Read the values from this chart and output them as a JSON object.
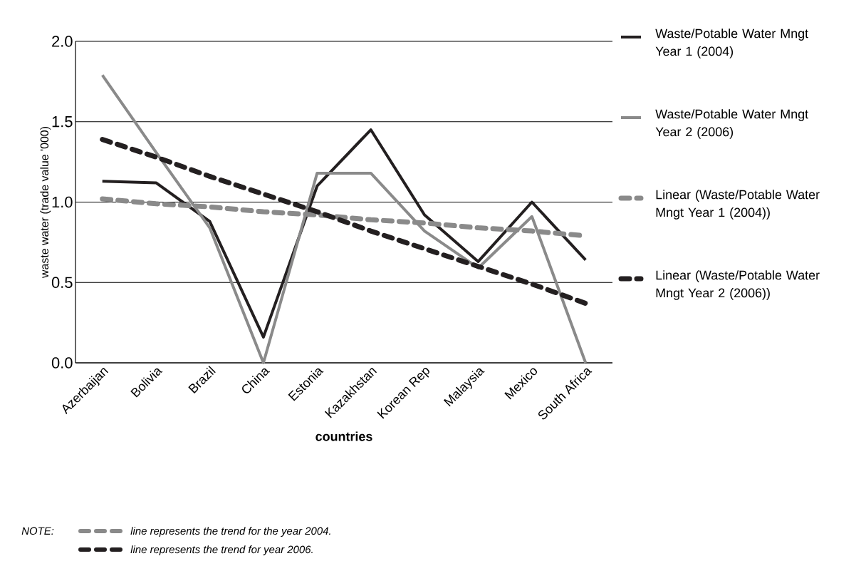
{
  "chart_data": {
    "type": "line",
    "xlabel": "countries",
    "ylabel": "waste water (trade value '000)",
    "categories": [
      "Azerbaijan",
      "Bolivia",
      "Brazil",
      "China",
      "Estonia",
      "Kazakhstan",
      "Korean Rep",
      "Malaysia",
      "Mexico",
      "South Africa"
    ],
    "series": [
      {
        "name": "Waste/Potable Water Mngt Year 1 (2004)",
        "color": "#231f20",
        "line_style": "solid",
        "values": [
          1.13,
          1.12,
          0.88,
          0.16,
          1.1,
          1.45,
          0.92,
          0.63,
          1.0,
          0.64
        ]
      },
      {
        "name": "Waste/Potable Water Mngt Year 2 (2006)",
        "color": "#8a8a8a",
        "line_style": "solid",
        "values": [
          1.79,
          1.31,
          0.84,
          0.0,
          1.18,
          1.18,
          0.82,
          0.59,
          0.91,
          0.0
        ]
      },
      {
        "name": "Linear (Waste/Potable Water Mngt Year 1 (2004))",
        "color": "#8a8a8a",
        "line_style": "dashed",
        "values": [
          1.02,
          0.99,
          0.97,
          0.94,
          0.92,
          0.89,
          0.87,
          0.84,
          0.82,
          0.79
        ]
      },
      {
        "name": "Linear (Waste/Potable Water Mngt Year 2 (2006))",
        "color": "#231f20",
        "line_style": "dashed",
        "values": [
          1.39,
          1.28,
          1.16,
          1.05,
          0.94,
          0.82,
          0.71,
          0.6,
          0.49,
          0.37
        ]
      }
    ],
    "ylim": [
      0,
      2
    ],
    "yticks": [
      {
        "value": 0,
        "label": "0.0"
      },
      0.5,
      {
        "value": 1,
        "label": "1.0"
      },
      1.5,
      {
        "value": 2,
        "label": "2.0"
      }
    ],
    "grid": "y",
    "legend": "right",
    "marker": "none",
    "annotations": [
      "NOTE:",
      "line represents the trend  for the year 2004.",
      "line represents the trend for year 2006."
    ]
  }
}
